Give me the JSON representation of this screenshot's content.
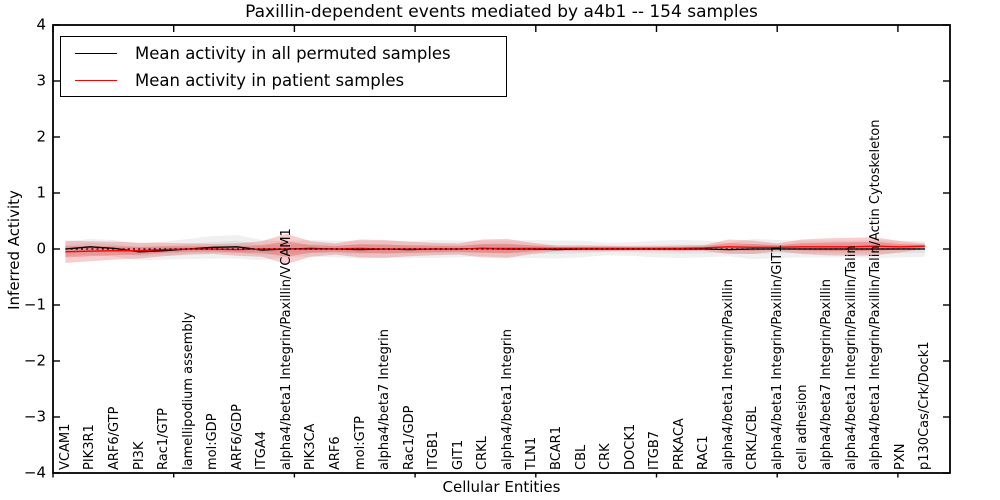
{
  "chart_data": {
    "type": "line",
    "title": "Paxillin-dependent events mediated by a4b1 -- 154 samples",
    "xlabel": "Cellular Entities",
    "ylabel": "Inferred Activity",
    "ylim": [
      -4,
      4
    ],
    "yticks": [
      4,
      3,
      2,
      1,
      0,
      -1,
      -2,
      -3,
      -4
    ],
    "grid": false,
    "legend_position": "upper left",
    "reference_line": {
      "y": 0,
      "style": "dotted",
      "color": "#000000"
    },
    "categories": [
      "VCAM1",
      "PIK3R1",
      "ARF6/GTP",
      "PI3K",
      "Rac1/GTP",
      "lamellipodium assembly",
      "mol:GDP",
      "ARF6/GDP",
      "ITGA4",
      "alpha4/beta1 Integrin/Paxillin/VCAM1",
      "PIK3CA",
      "ARF6",
      "mol:GTP",
      "alpha4/beta7 Integrin",
      "Rac1/GDP",
      "ITGB1",
      "GIT1",
      "CRKL",
      "alpha4/beta1 Integrin",
      "TLN1",
      "BCAR1",
      "CBL",
      "CRK",
      "DOCK1",
      "ITGB7",
      "PRKACA",
      "RAC1",
      "alpha4/beta1 Integrin/Paxillin",
      "CRKL/CBL",
      "alpha4/beta1 Integrin/Paxillin/GIT1",
      "cell adhesion",
      "alpha4/beta7 Integrin/Paxillin",
      "alpha4/beta1 Integrin/Paxillin/Talin",
      "alpha4/beta1 Integrin/Paxillin/Talin/Actin Cytoskeleton",
      "PXN",
      "p130Cas/Crk/Dock1"
    ],
    "series": [
      {
        "name": "Mean activity in all permuted samples",
        "line_color": "#000000",
        "band_color": "#888888",
        "mean": [
          0.0,
          0.04,
          0.01,
          -0.05,
          -0.03,
          0.0,
          0.03,
          0.04,
          -0.02,
          0.0,
          0.01,
          0.0,
          -0.01,
          0.0,
          -0.01,
          0.0,
          0.0,
          0.01,
          0.0,
          0.0,
          -0.01,
          0.0,
          0.0,
          0.0,
          0.0,
          0.0,
          0.0,
          -0.01,
          0.0,
          0.0,
          0.0,
          0.0,
          0.0,
          0.0,
          0.0,
          0.0
        ],
        "std": [
          0.13,
          0.14,
          0.15,
          0.15,
          0.16,
          0.18,
          0.2,
          0.21,
          0.18,
          0.14,
          0.15,
          0.15,
          0.16,
          0.15,
          0.15,
          0.16,
          0.15,
          0.14,
          0.15,
          0.16,
          0.16,
          0.15,
          0.11,
          0.12,
          0.15,
          0.16,
          0.15,
          0.12,
          0.18,
          0.16,
          0.15,
          0.15,
          0.15,
          0.16,
          0.15,
          0.14
        ]
      },
      {
        "name": "Mean activity in patient samples",
        "line_color": "#ff0000",
        "band_color": "#e03030",
        "mean": [
          -0.05,
          -0.04,
          -0.03,
          -0.03,
          -0.01,
          0.0,
          0.0,
          -0.01,
          0.0,
          0.0,
          0.0,
          0.0,
          0.01,
          0.0,
          0.0,
          0.0,
          0.0,
          0.01,
          0.01,
          0.01,
          0.01,
          0.01,
          0.01,
          0.01,
          0.01,
          0.01,
          0.02,
          0.04,
          0.03,
          0.03,
          0.04,
          0.04,
          0.04,
          0.05,
          0.04,
          0.05
        ],
        "std": [
          0.2,
          0.18,
          0.16,
          0.14,
          0.12,
          0.1,
          0.09,
          0.11,
          0.14,
          0.27,
          0.14,
          0.1,
          0.16,
          0.16,
          0.13,
          0.11,
          0.1,
          0.16,
          0.17,
          0.1,
          0.05,
          0.05,
          0.05,
          0.04,
          0.04,
          0.05,
          0.05,
          0.13,
          0.12,
          0.07,
          0.13,
          0.15,
          0.16,
          0.16,
          0.1,
          0.05
        ]
      }
    ]
  }
}
